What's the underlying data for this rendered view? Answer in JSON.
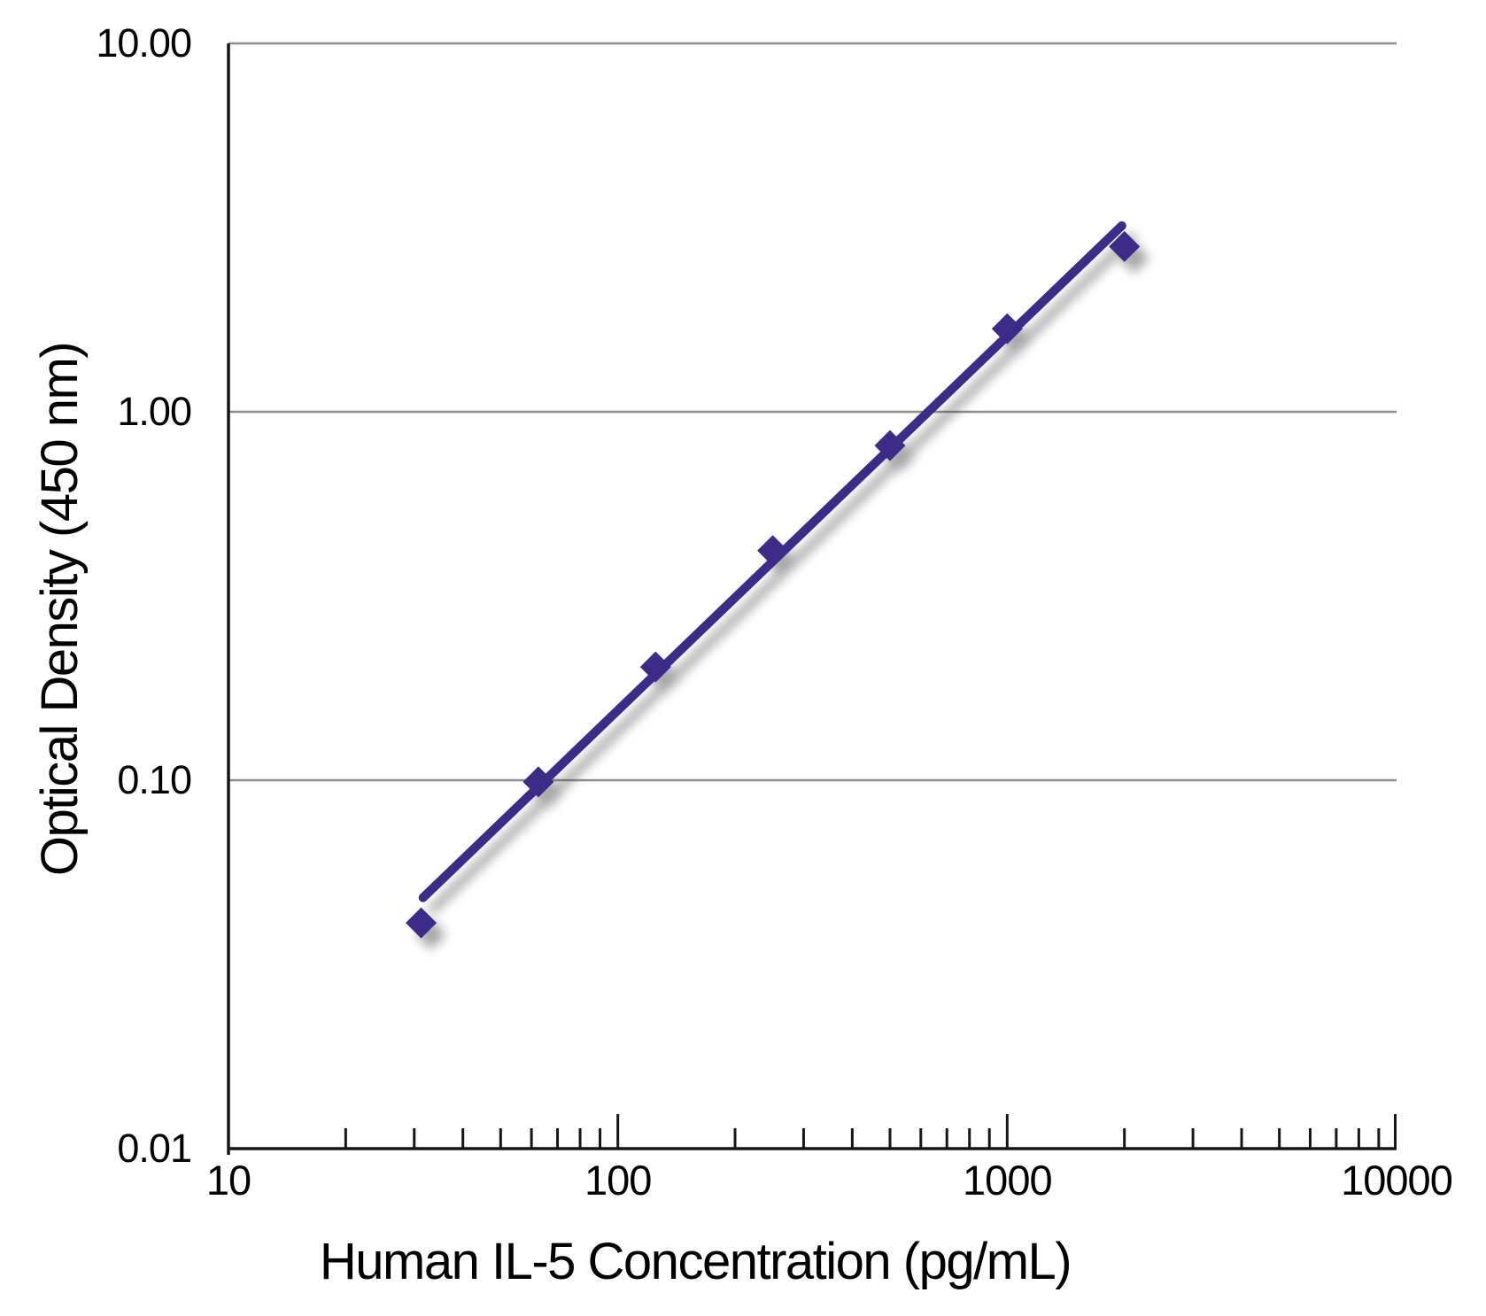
{
  "figure": {
    "background": "#ffffff"
  },
  "chart_data": {
    "type": "scatter",
    "title": "",
    "xlabel": "Human IL-5 Concentration (pg/mL)",
    "ylabel": "Optical Density (450 nm)",
    "x_scale": "log",
    "y_scale": "log",
    "xlim": [
      10,
      10000
    ],
    "ylim": [
      0.01,
      10
    ],
    "grid": "horizontal-only",
    "legend_position": "none",
    "x_ticks": [
      {
        "value": 10,
        "label": "10"
      },
      {
        "value": 100,
        "label": "100"
      },
      {
        "value": 1000,
        "label": "1000"
      },
      {
        "value": 10000,
        "label": "10000"
      }
    ],
    "x_minor_ticks": [
      20,
      30,
      40,
      50,
      60,
      70,
      80,
      90,
      200,
      300,
      400,
      500,
      600,
      700,
      800,
      900,
      2000,
      3000,
      4000,
      5000,
      6000,
      7000,
      8000,
      9000
    ],
    "y_ticks": [
      {
        "value": 10,
        "label": "10.00"
      },
      {
        "value": 1,
        "label": "1.00"
      },
      {
        "value": 0.1,
        "label": "0.10"
      },
      {
        "value": 0.01,
        "label": "0.01"
      }
    ],
    "y_gridlines": [
      10,
      1,
      0.1
    ],
    "series": [
      {
        "name": "standard-curve-fit-line",
        "type": "line",
        "color": "#3c2b87",
        "points": [
          {
            "x": 31.6,
            "y": 0.048
          },
          {
            "x": 1970,
            "y": 3.2
          }
        ]
      },
      {
        "name": "standard-data-points",
        "type": "scatter",
        "marker": "diamond",
        "color": "#3c2b87",
        "points": [
          {
            "x": 31.25,
            "y": 0.041
          },
          {
            "x": 62.5,
            "y": 0.099
          },
          {
            "x": 125,
            "y": 0.203
          },
          {
            "x": 250,
            "y": 0.42
          },
          {
            "x": 500,
            "y": 0.81
          },
          {
            "x": 1000,
            "y": 1.68
          },
          {
            "x": 2000,
            "y": 2.81
          }
        ]
      }
    ],
    "colors": {
      "series": "#3c2b87",
      "gridline": "#8e8e8e",
      "axis": "#161616",
      "text": "#000000"
    }
  }
}
